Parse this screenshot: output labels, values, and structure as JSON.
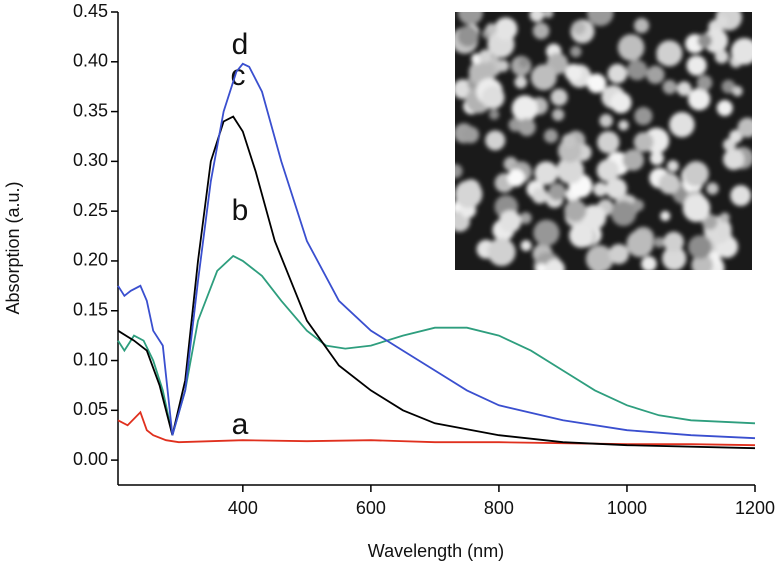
{
  "chart_data": {
    "type": "line",
    "x_label": "Wavelength (nm)",
    "y_label": "Absorption (a.u.)",
    "xlim": [
      205,
      1200
    ],
    "xticks": [
      400,
      600,
      800,
      1000,
      1200
    ],
    "ylim": [
      -0.025,
      0.45
    ],
    "yticks": [
      {
        "value": 0,
        "label": "0.00"
      },
      {
        "value": 0.05,
        "label": "0.05"
      },
      {
        "value": 0.1,
        "label": "0.10"
      },
      {
        "value": 0.15,
        "label": "0.15"
      },
      {
        "value": 0.2,
        "label": "0.20"
      },
      {
        "value": 0.25,
        "label": "0.25"
      },
      {
        "value": 0.3,
        "label": "0.30"
      },
      {
        "value": 0.35,
        "label": "0.35"
      },
      {
        "value": 0.4,
        "label": "0.40"
      },
      {
        "value": 0.45,
        "label": "0.45"
      }
    ],
    "series": [
      {
        "name": "a",
        "color": "#e0301e",
        "x": [
          205,
          220,
          240,
          250,
          260,
          280,
          300,
          400,
          500,
          600,
          700,
          800,
          900,
          1000,
          1100,
          1200
        ],
        "values": [
          0.04,
          0.035,
          0.048,
          0.03,
          0.025,
          0.02,
          0.018,
          0.02,
          0.019,
          0.02,
          0.018,
          0.018,
          0.017,
          0.016,
          0.016,
          0.015
        ]
      },
      {
        "name": "b",
        "color": "#2e9e7e",
        "x": [
          205,
          215,
          230,
          245,
          260,
          275,
          290,
          310,
          330,
          360,
          385,
          400,
          430,
          460,
          500,
          530,
          560,
          600,
          650,
          700,
          750,
          800,
          850,
          900,
          950,
          1000,
          1050,
          1100,
          1200
        ],
        "values": [
          0.12,
          0.11,
          0.125,
          0.12,
          0.1,
          0.07,
          0.025,
          0.07,
          0.14,
          0.19,
          0.205,
          0.2,
          0.185,
          0.16,
          0.13,
          0.115,
          0.112,
          0.115,
          0.125,
          0.133,
          0.133,
          0.125,
          0.11,
          0.09,
          0.07,
          0.055,
          0.045,
          0.04,
          0.037
        ]
      },
      {
        "name": "c",
        "color": "#000000",
        "x": [
          205,
          230,
          250,
          270,
          290,
          310,
          330,
          350,
          370,
          385,
          400,
          420,
          450,
          500,
          550,
          600,
          650,
          700,
          800,
          900,
          1000,
          1200
        ],
        "values": [
          0.13,
          0.12,
          0.11,
          0.075,
          0.025,
          0.08,
          0.2,
          0.3,
          0.34,
          0.345,
          0.33,
          0.29,
          0.22,
          0.14,
          0.095,
          0.07,
          0.05,
          0.037,
          0.025,
          0.018,
          0.015,
          0.012
        ]
      },
      {
        "name": "d",
        "color": "#3a4fcf",
        "x": [
          205,
          215,
          225,
          240,
          250,
          260,
          275,
          290,
          310,
          330,
          350,
          370,
          390,
          400,
          410,
          430,
          460,
          500,
          550,
          600,
          650,
          700,
          750,
          800,
          900,
          1000,
          1100,
          1200
        ],
        "values": [
          0.175,
          0.165,
          0.17,
          0.175,
          0.16,
          0.13,
          0.115,
          0.025,
          0.07,
          0.18,
          0.28,
          0.35,
          0.39,
          0.398,
          0.395,
          0.37,
          0.3,
          0.22,
          0.16,
          0.13,
          0.11,
          0.09,
          0.07,
          0.055,
          0.04,
          0.03,
          0.025,
          0.022
        ]
      }
    ]
  }
}
